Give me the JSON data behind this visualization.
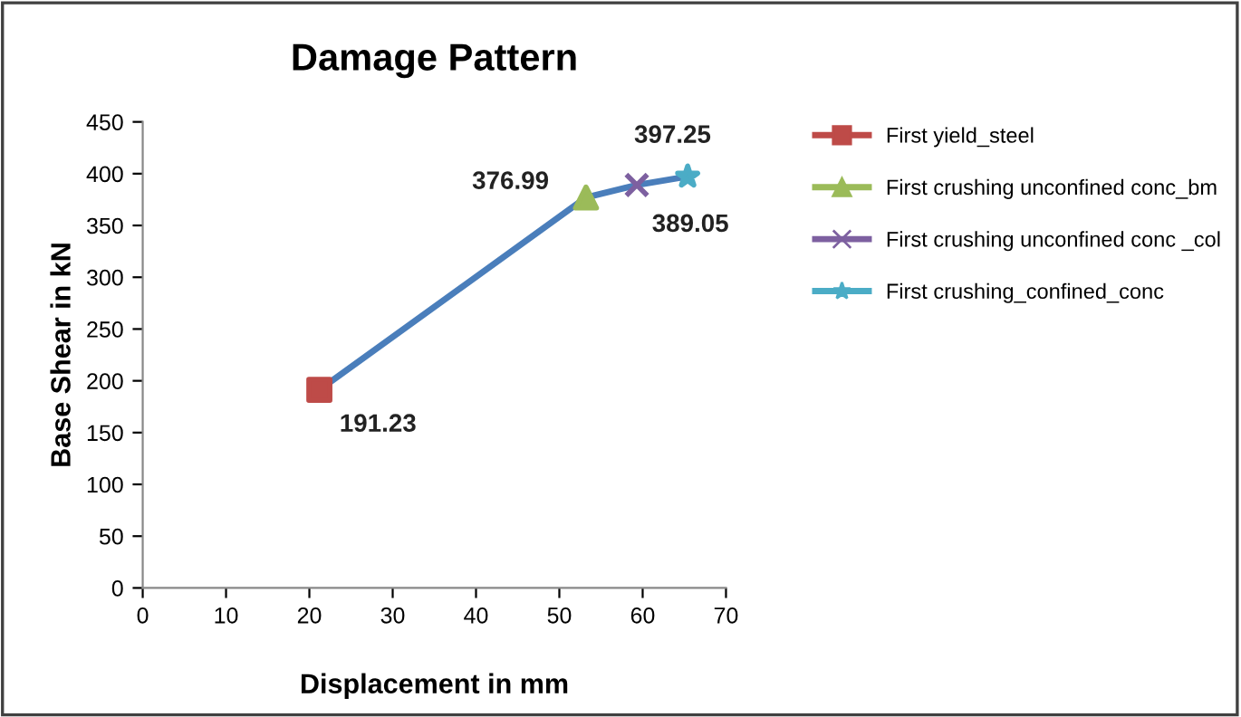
{
  "chart_data": {
    "type": "line",
    "title": "Damage Pattern",
    "xlabel": "Displacement in mm",
    "ylabel": "Base Shear in kN",
    "xlim": [
      0,
      70
    ],
    "xticks": [
      0,
      10,
      20,
      30,
      40,
      50,
      60,
      70
    ],
    "ylim": [
      0,
      450
    ],
    "yticks": [
      0,
      50,
      100,
      150,
      200,
      250,
      300,
      350,
      400,
      450
    ],
    "grid": false,
    "legend": "right",
    "series": [
      {
        "color": "#4a7ebb",
        "marker": "none",
        "x": [
          21.2,
          53.2,
          59.3,
          65.4
        ],
        "values": [
          191.23,
          376.99,
          389.05,
          397.25
        ]
      },
      {
        "type": "scatter",
        "name": "First yield_steel",
        "color": "#be4b48",
        "marker": "square",
        "x": [
          21.2
        ],
        "values": [
          191.23
        ],
        "value_labels": [
          "191.23"
        ]
      },
      {
        "type": "scatter",
        "name": "First crushing unconfined conc_bm",
        "color": "#9bbb59",
        "marker": "triangle",
        "x": [
          53.2
        ],
        "values": [
          376.99
        ],
        "value_labels": [
          "376.99"
        ]
      },
      {
        "type": "scatter",
        "name": "First crushing unconfined conc _col",
        "color": "#7d60a0",
        "marker": "cross",
        "x": [
          59.3
        ],
        "values": [
          389.05
        ],
        "value_labels": [
          "389.05"
        ]
      },
      {
        "type": "scatter",
        "name": "First crushing_confined_conc",
        "color": "#4bacc6",
        "marker": "star",
        "x": [
          65.4
        ],
        "values": [
          397.25
        ],
        "value_labels": [
          "397.25"
        ]
      }
    ]
  }
}
